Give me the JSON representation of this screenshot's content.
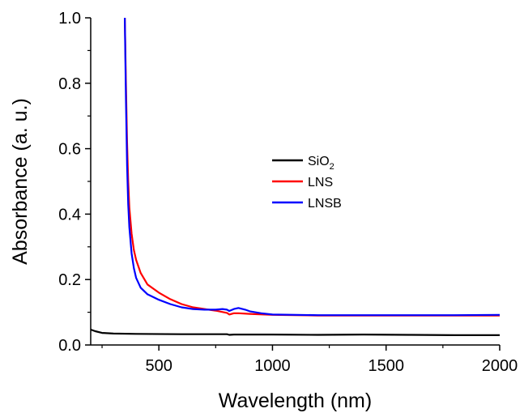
{
  "chart_data": {
    "type": "line",
    "title": "",
    "xlabel": "Wavelength (nm)",
    "ylabel": "Absorbance (a. u.)",
    "xlim": [
      200,
      2000
    ],
    "ylim": [
      0.0,
      1.0
    ],
    "x_ticks": [
      500,
      1000,
      1500,
      2000
    ],
    "x_tick_labels": [
      "500",
      "1000",
      "1500",
      "2000"
    ],
    "y_ticks": [
      0.0,
      0.2,
      0.4,
      0.6,
      0.8,
      1.0
    ],
    "y_tick_labels": [
      "0.0",
      "0.2",
      "0.4",
      "0.6",
      "0.8",
      "1.0"
    ],
    "grid": false,
    "legend_position": "center-right",
    "legend": [
      {
        "label_main": "SiO",
        "label_sub": "2",
        "color": "#000000"
      },
      {
        "label_main": "LNS",
        "label_sub": "",
        "color": "#ff0000"
      },
      {
        "label_main": "LNSB",
        "label_sub": "",
        "color": "#0000ff"
      }
    ],
    "series": [
      {
        "name": "SiO2",
        "color": "#000000",
        "points": [
          [
            200,
            0.047
          ],
          [
            220,
            0.042
          ],
          [
            250,
            0.037
          ],
          [
            300,
            0.035
          ],
          [
            400,
            0.034
          ],
          [
            600,
            0.033
          ],
          [
            800,
            0.033
          ],
          [
            810,
            0.031
          ],
          [
            830,
            0.032
          ],
          [
            1000,
            0.032
          ],
          [
            1200,
            0.031
          ],
          [
            1400,
            0.032
          ],
          [
            1600,
            0.031
          ],
          [
            1800,
            0.03
          ],
          [
            2000,
            0.03
          ]
        ]
      },
      {
        "name": "LNS",
        "color": "#ff0000",
        "points": [
          [
            350,
            1.0
          ],
          [
            355,
            0.8
          ],
          [
            360,
            0.62
          ],
          [
            365,
            0.5
          ],
          [
            370,
            0.42
          ],
          [
            380,
            0.34
          ],
          [
            390,
            0.29
          ],
          [
            400,
            0.26
          ],
          [
            420,
            0.22
          ],
          [
            450,
            0.185
          ],
          [
            500,
            0.16
          ],
          [
            550,
            0.14
          ],
          [
            600,
            0.125
          ],
          [
            650,
            0.115
          ],
          [
            700,
            0.11
          ],
          [
            750,
            0.105
          ],
          [
            800,
            0.098
          ],
          [
            810,
            0.093
          ],
          [
            830,
            0.097
          ],
          [
            850,
            0.097
          ],
          [
            900,
            0.095
          ],
          [
            1000,
            0.092
          ],
          [
            1200,
            0.09
          ],
          [
            1500,
            0.09
          ],
          [
            1800,
            0.09
          ],
          [
            2000,
            0.09
          ]
        ]
      },
      {
        "name": "LNSB",
        "color": "#0000ff",
        "points": [
          [
            350,
            1.0
          ],
          [
            355,
            0.75
          ],
          [
            360,
            0.55
          ],
          [
            365,
            0.43
          ],
          [
            370,
            0.36
          ],
          [
            380,
            0.28
          ],
          [
            390,
            0.235
          ],
          [
            400,
            0.205
          ],
          [
            420,
            0.175
          ],
          [
            450,
            0.155
          ],
          [
            500,
            0.138
          ],
          [
            550,
            0.125
          ],
          [
            600,
            0.115
          ],
          [
            650,
            0.11
          ],
          [
            700,
            0.108
          ],
          [
            750,
            0.108
          ],
          [
            780,
            0.11
          ],
          [
            800,
            0.108
          ],
          [
            810,
            0.104
          ],
          [
            830,
            0.11
          ],
          [
            850,
            0.113
          ],
          [
            880,
            0.108
          ],
          [
            900,
            0.103
          ],
          [
            950,
            0.097
          ],
          [
            1000,
            0.093
          ],
          [
            1200,
            0.091
          ],
          [
            1500,
            0.091
          ],
          [
            1800,
            0.091
          ],
          [
            2000,
            0.092
          ]
        ]
      }
    ]
  }
}
